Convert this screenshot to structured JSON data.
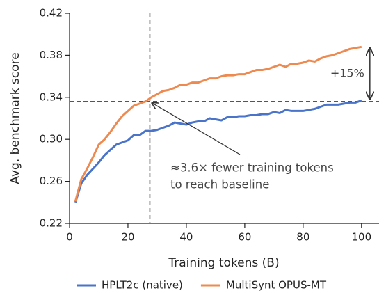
{
  "chart_data": {
    "type": "line",
    "xlabel": "Training tokens (B)",
    "ylabel": "Avg. benchmark score",
    "x": [
      2,
      4,
      6,
      8,
      10,
      12,
      14,
      16,
      18,
      20,
      22,
      24,
      26,
      28,
      30,
      32,
      34,
      36,
      38,
      40,
      42,
      44,
      46,
      48,
      50,
      52,
      54,
      56,
      58,
      60,
      62,
      64,
      66,
      68,
      70,
      72,
      74,
      76,
      78,
      80,
      82,
      84,
      86,
      88,
      90,
      92,
      94,
      96,
      98,
      100
    ],
    "series": [
      {
        "name": "HPLT2c (native)",
        "color": "#4a74c9",
        "values": [
          0.24,
          0.258,
          0.266,
          0.272,
          0.278,
          0.285,
          0.29,
          0.295,
          0.297,
          0.299,
          0.304,
          0.304,
          0.308,
          0.308,
          0.309,
          0.311,
          0.313,
          0.316,
          0.315,
          0.314,
          0.316,
          0.317,
          0.317,
          0.32,
          0.319,
          0.318,
          0.321,
          0.321,
          0.322,
          0.322,
          0.323,
          0.323,
          0.324,
          0.324,
          0.326,
          0.325,
          0.328,
          0.327,
          0.327,
          0.327,
          0.328,
          0.329,
          0.331,
          0.333,
          0.333,
          0.333,
          0.334,
          0.335,
          0.335,
          0.337
        ]
      },
      {
        "name": "MultiSynt OPUS-MT",
        "color": "#ee8a4f",
        "values": [
          0.241,
          0.262,
          0.272,
          0.283,
          0.295,
          0.3,
          0.307,
          0.315,
          0.322,
          0.327,
          0.332,
          0.334,
          0.336,
          0.34,
          0.343,
          0.346,
          0.347,
          0.349,
          0.352,
          0.352,
          0.354,
          0.354,
          0.356,
          0.358,
          0.358,
          0.36,
          0.361,
          0.361,
          0.362,
          0.362,
          0.364,
          0.366,
          0.366,
          0.367,
          0.369,
          0.371,
          0.369,
          0.372,
          0.372,
          0.373,
          0.375,
          0.374,
          0.377,
          0.379,
          0.38,
          0.382,
          0.384,
          0.386,
          0.387,
          0.388
        ]
      }
    ],
    "xlim": [
      0,
      106
    ],
    "xticks": [
      0,
      20,
      40,
      60,
      80,
      100
    ],
    "ylim": [
      0.22,
      0.42
    ],
    "yticks": [
      0.22,
      0.26,
      {
        "value": 0.3,
        "label": "0.30"
      },
      0.34,
      0.38,
      0.42
    ],
    "vline": 27.5,
    "hline": 0.336,
    "annotations": {
      "gain": "+15%",
      "arrow_text": [
        "≈3.6× fewer training tokens",
        "to reach baseline"
      ]
    },
    "legend": "bottom"
  }
}
